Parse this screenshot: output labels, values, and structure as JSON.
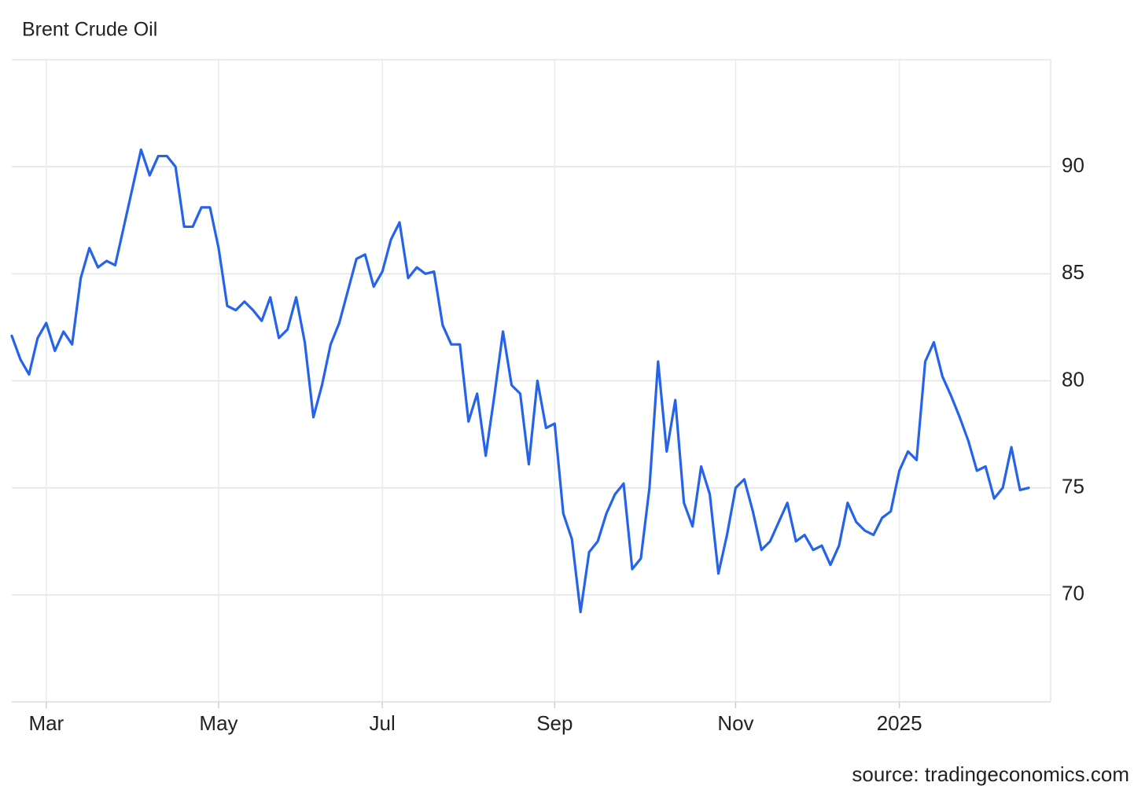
{
  "chart_data": {
    "type": "line",
    "title": "Brent Crude Oil",
    "source": "source: tradingeconomics.com",
    "categories": [
      null,
      null,
      null,
      null,
      "Mar",
      null,
      null,
      null,
      null,
      null,
      null,
      null,
      null,
      null,
      null,
      null,
      null,
      null,
      null,
      null,
      null,
      null,
      null,
      null,
      "May",
      null,
      null,
      null,
      null,
      null,
      null,
      null,
      null,
      null,
      null,
      null,
      null,
      null,
      null,
      null,
      null,
      null,
      null,
      "Jul",
      null,
      null,
      null,
      null,
      null,
      null,
      null,
      null,
      null,
      null,
      null,
      null,
      null,
      null,
      null,
      null,
      null,
      null,
      null,
      "Sep",
      null,
      null,
      null,
      null,
      null,
      null,
      null,
      null,
      null,
      null,
      null,
      null,
      null,
      null,
      null,
      null,
      null,
      null,
      null,
      null,
      "Nov",
      null,
      null,
      null,
      null,
      null,
      null,
      null,
      null,
      null,
      null,
      null,
      null,
      null,
      null,
      null,
      null,
      null,
      null,
      "2025",
      null,
      null,
      null,
      null,
      null,
      null,
      null,
      null,
      null,
      null,
      null,
      null,
      null,
      null,
      null
    ],
    "values": [
      82.1,
      81.0,
      80.3,
      82.0,
      82.7,
      81.4,
      82.3,
      81.7,
      84.8,
      86.2,
      85.3,
      85.6,
      85.4,
      87.2,
      89.0,
      90.8,
      89.6,
      90.5,
      90.5,
      90.0,
      87.2,
      87.2,
      88.1,
      88.1,
      86.2,
      83.5,
      83.3,
      83.7,
      83.3,
      82.8,
      83.9,
      82.0,
      82.4,
      83.9,
      81.8,
      78.3,
      79.8,
      81.7,
      82.7,
      84.2,
      85.7,
      85.9,
      84.4,
      85.1,
      86.6,
      87.4,
      84.8,
      85.3,
      85.0,
      85.1,
      82.6,
      81.7,
      81.7,
      78.1,
      79.4,
      76.5,
      79.3,
      82.3,
      79.8,
      79.4,
      76.1,
      80.0,
      77.8,
      78.0,
      73.8,
      72.6,
      69.2,
      72.0,
      72.5,
      73.8,
      74.7,
      75.2,
      71.2,
      71.7,
      75.0,
      80.9,
      76.7,
      79.1,
      74.3,
      73.2,
      76.0,
      74.7,
      71.0,
      72.8,
      75.0,
      75.4,
      73.9,
      72.1,
      72.5,
      73.4,
      74.3,
      72.5,
      72.8,
      72.1,
      72.3,
      71.4,
      72.3,
      74.3,
      73.4,
      73.0,
      72.8,
      73.6,
      73.9,
      75.8,
      76.7,
      76.3,
      80.9,
      81.8,
      80.2,
      79.3,
      78.3,
      77.2,
      75.8,
      76.0,
      74.5,
      75.0,
      76.9,
      74.9,
      75.0
    ],
    "color": "#2563eb",
    "ylim": [
      65,
      95
    ],
    "yticks": [
      70,
      75,
      80,
      85,
      90
    ],
    "grid": true
  }
}
